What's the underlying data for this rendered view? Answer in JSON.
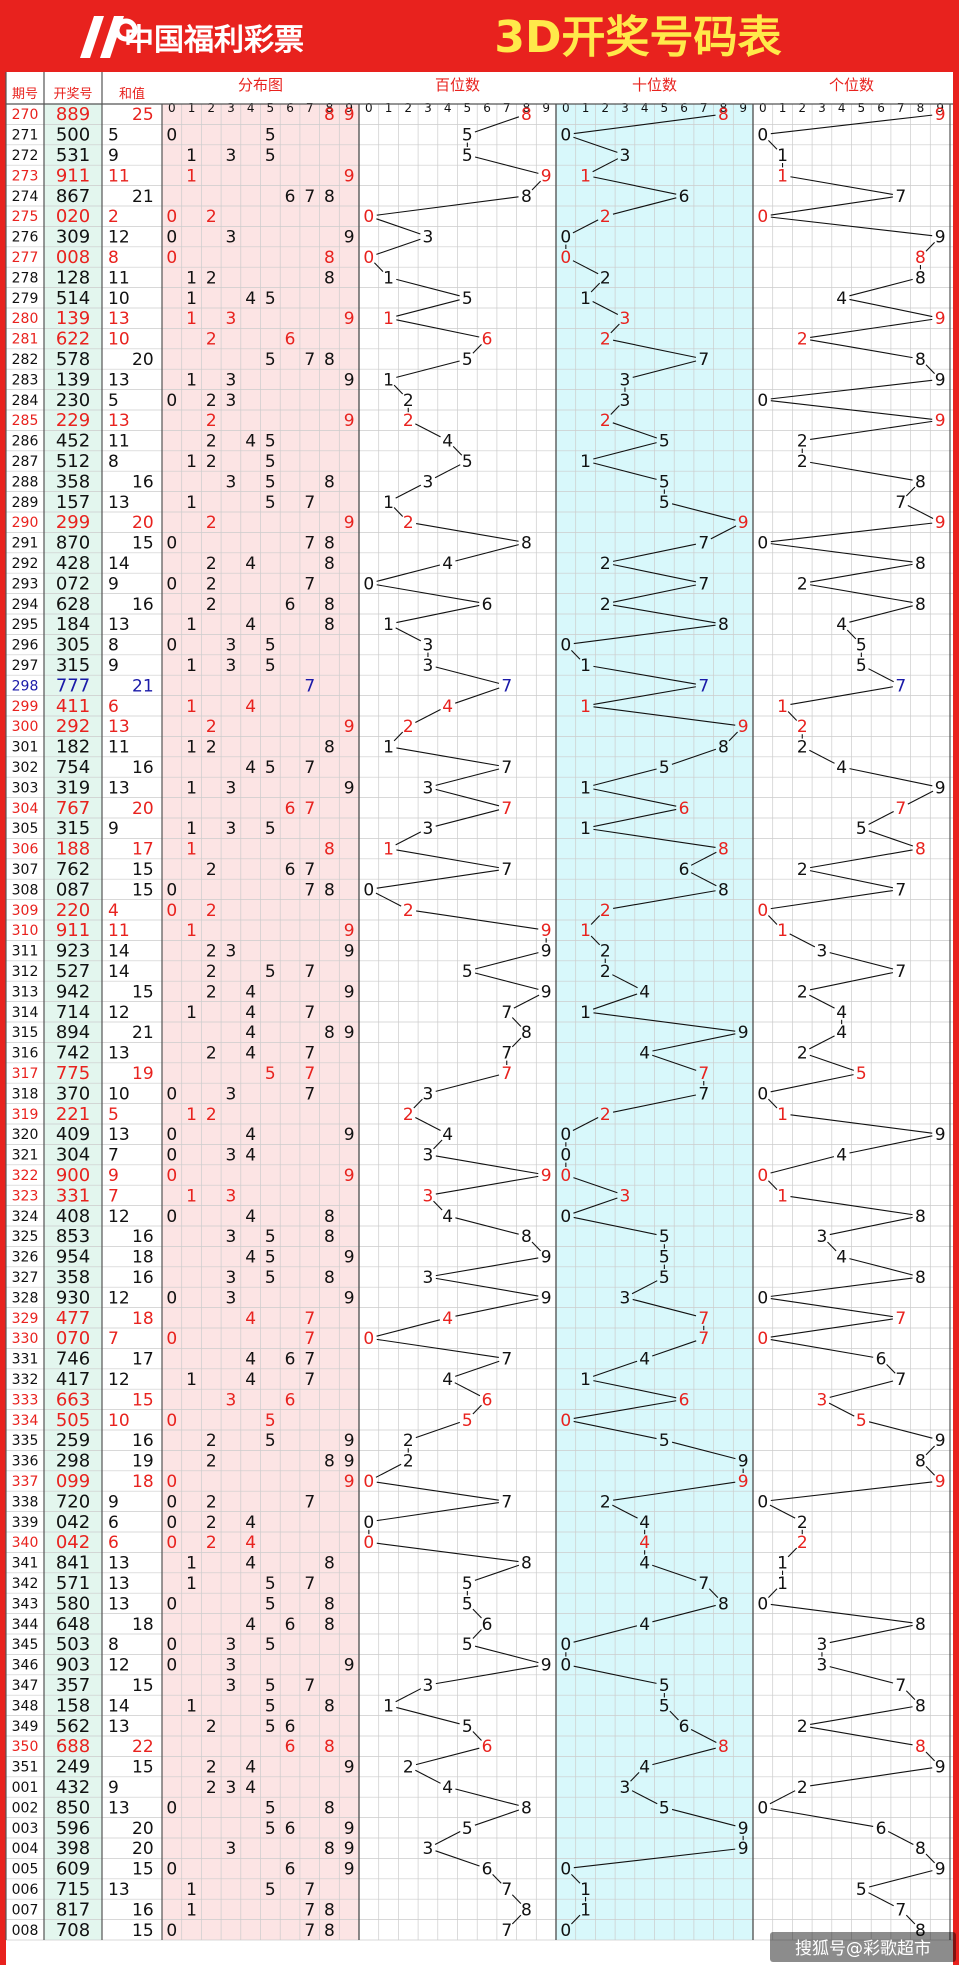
{
  "header": {
    "logo_text": "中国福利彩票",
    "title": "3D开奖号码表"
  },
  "columns": {
    "period": "期号",
    "number": "开奖号",
    "sum": "和值",
    "distribution": "分布图",
    "hundreds": "百位数",
    "tens": "十位数",
    "units": "个位数"
  },
  "digit_labels": [
    "0",
    "1",
    "2",
    "3",
    "4",
    "5",
    "6",
    "7",
    "8",
    "9"
  ],
  "watermark": "搜狐号@彩歌超市",
  "colors": {
    "header_bg": "#e8221e",
    "header_text": "#ffffff",
    "title_text": "#ffe94a",
    "frame_red": "#e8221e",
    "number_col_bg": "#e3f6ee",
    "dist_bg": "#fce4e4",
    "tens_bg": "#d8f8fb",
    "grid": "#cccccc",
    "text_black": "#111111",
    "text_red": "#e8221e",
    "text_blue": "#1a1aa8",
    "border_dark": "#555555"
  },
  "chart_data": {
    "type": "table",
    "periods": [
      "270",
      "271",
      "272",
      "273",
      "274",
      "275",
      "276",
      "277",
      "278",
      "279",
      "280",
      "281",
      "282",
      "283",
      "284",
      "285",
      "286",
      "287",
      "288",
      "289",
      "290",
      "291",
      "292",
      "293",
      "294",
      "295",
      "296",
      "297",
      "298",
      "299",
      "300",
      "301",
      "302",
      "303",
      "304",
      "305",
      "306",
      "307",
      "308",
      "309",
      "310",
      "311",
      "312",
      "313",
      "314",
      "315",
      "316",
      "317",
      "318",
      "319",
      "320",
      "321",
      "322",
      "323",
      "324",
      "325",
      "326",
      "327",
      "328",
      "329",
      "330",
      "331",
      "332",
      "333",
      "334",
      "335",
      "336",
      "337",
      "338",
      "339",
      "340",
      "341",
      "342",
      "343",
      "344",
      "345",
      "346",
      "347",
      "348",
      "349",
      "350",
      "351",
      "001",
      "002",
      "003",
      "004",
      "005",
      "006",
      "007",
      "008"
    ],
    "numbers": [
      "889",
      "500",
      "531",
      "911",
      "867",
      "020",
      "309",
      "008",
      "128",
      "514",
      "139",
      "622",
      "578",
      "139",
      "230",
      "229",
      "452",
      "512",
      "358",
      "157",
      "299",
      "870",
      "428",
      "072",
      "628",
      "184",
      "305",
      "315",
      "777",
      "411",
      "292",
      "182",
      "754",
      "319",
      "767",
      "315",
      "188",
      "762",
      "087",
      "220",
      "911",
      "923",
      "527",
      "942",
      "714",
      "894",
      "742",
      "775",
      "370",
      "221",
      "409",
      "304",
      "900",
      "331",
      "408",
      "853",
      "954",
      "358",
      "930",
      "477",
      "070",
      "746",
      "417",
      "663",
      "505",
      "259",
      "298",
      "099",
      "720",
      "042",
      "042",
      "841",
      "571",
      "580",
      "648",
      "503",
      "903",
      "357",
      "158",
      "562",
      "688",
      "249",
      "432",
      "850",
      "596",
      "398",
      "609",
      "715",
      "817",
      "708"
    ],
    "red_periods": [
      "270",
      "273",
      "275",
      "277",
      "280",
      "281",
      "285",
      "290",
      "299",
      "300",
      "304",
      "306",
      "309",
      "310",
      "317",
      "319",
      "322",
      "323",
      "329",
      "330",
      "333",
      "334",
      "337",
      "340",
      "350"
    ],
    "blue_periods": [
      "298"
    ]
  }
}
